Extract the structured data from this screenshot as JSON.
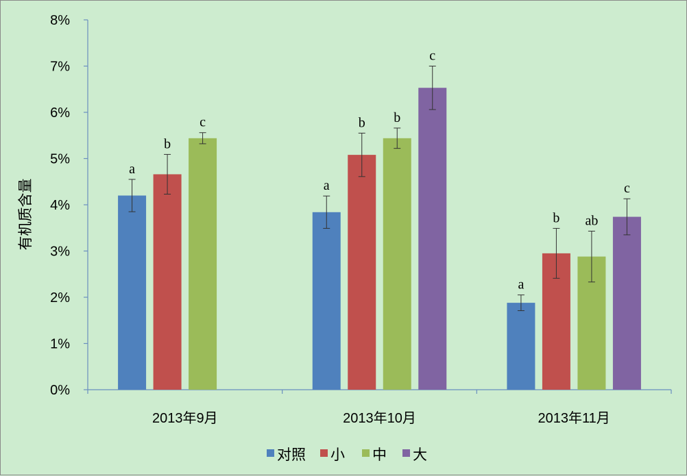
{
  "chart_data": {
    "type": "bar",
    "ylabel": "有机质含量",
    "xlabel": "",
    "title": "",
    "ylim": [
      0,
      8
    ],
    "yticks": [
      "0%",
      "1%",
      "2%",
      "3%",
      "4%",
      "5%",
      "6%",
      "7%",
      "8%"
    ],
    "categories": [
      "2013年9月",
      "2013年10月",
      "2013年11月"
    ],
    "legend_position": "bottom",
    "grid": false,
    "series": [
      {
        "name": "对照",
        "color": "#4f81bd",
        "values": [
          4.2,
          3.84,
          1.88
        ],
        "errors": [
          0.35,
          0.35,
          0.17
        ],
        "labels": [
          "a",
          "a",
          "a"
        ]
      },
      {
        "name": "小",
        "color": "#c0504d",
        "values": [
          4.66,
          5.08,
          2.95
        ],
        "errors": [
          0.43,
          0.47,
          0.54
        ],
        "labels": [
          "b",
          "b",
          "b"
        ]
      },
      {
        "name": "中",
        "color": "#9bbb59",
        "values": [
          5.44,
          5.44,
          2.88
        ],
        "errors": [
          0.12,
          0.22,
          0.55
        ],
        "labels": [
          "c",
          "b",
          "ab"
        ]
      },
      {
        "name": "大",
        "color": "#8064a2",
        "values": [
          null,
          6.53,
          3.74
        ],
        "errors": [
          null,
          0.47,
          0.39
        ],
        "labels": [
          "",
          "c",
          "c"
        ]
      }
    ]
  }
}
